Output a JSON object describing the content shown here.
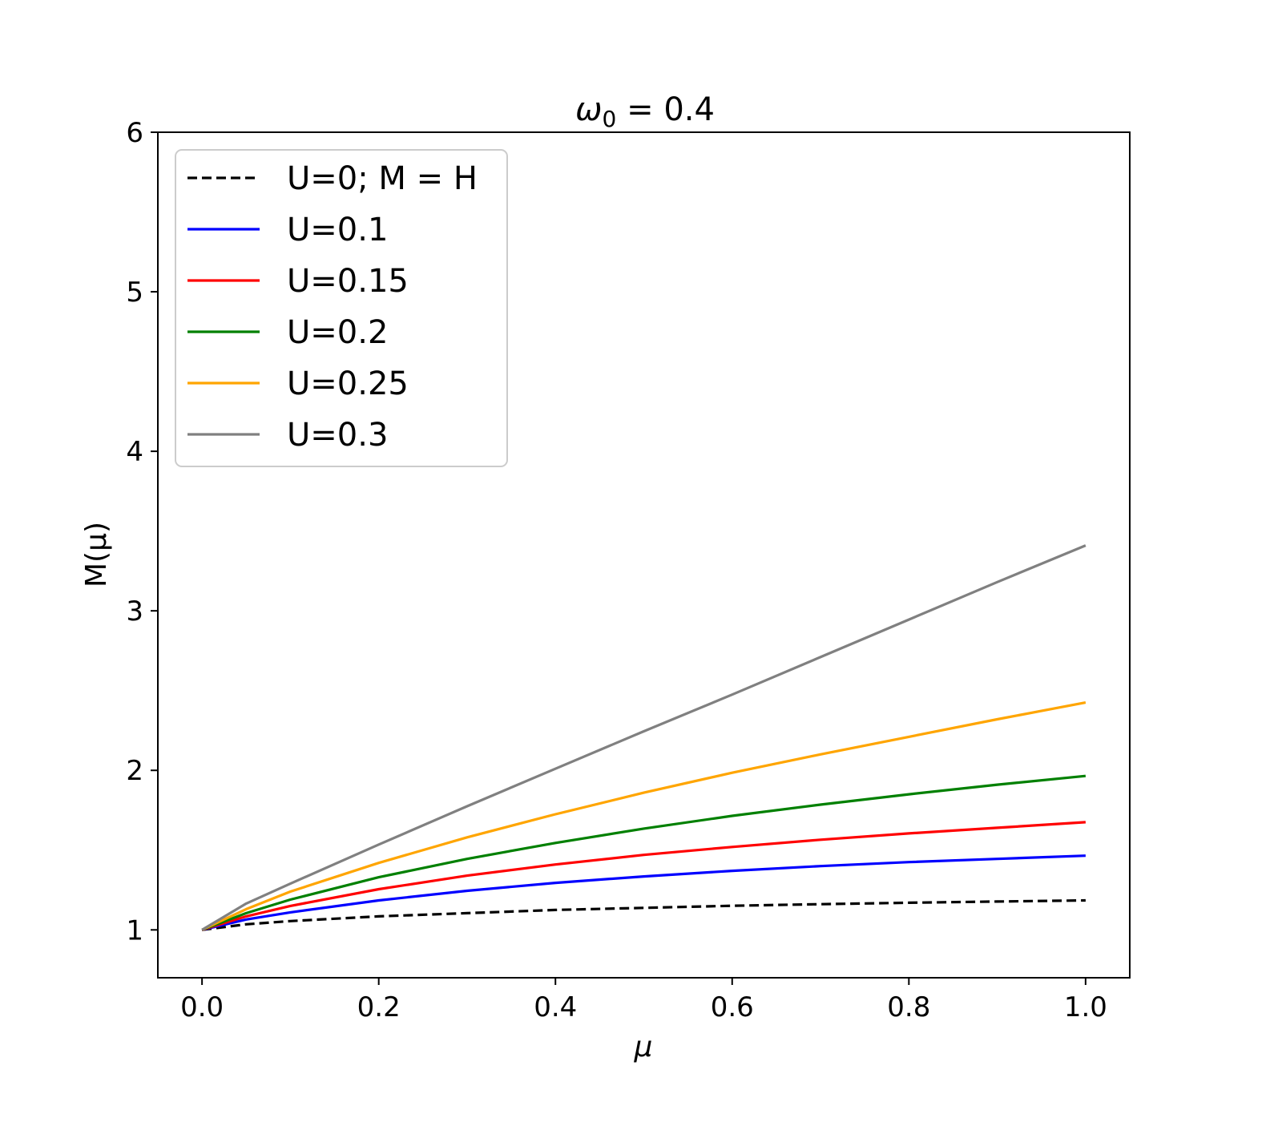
{
  "chart_data": {
    "type": "line",
    "title": {
      "symbol": "ω",
      "subscript": "0",
      "rest": " = 0.4"
    },
    "xlabel": "μ",
    "ylabel": "M(μ)",
    "xlim": [
      -0.05,
      1.05
    ],
    "ylim": [
      0.7,
      6.0
    ],
    "xticks": [
      0.0,
      0.2,
      0.4,
      0.6,
      0.8,
      1.0
    ],
    "xtick_labels": [
      "0.0",
      "0.2",
      "0.4",
      "0.6",
      "0.8",
      "1.0"
    ],
    "yticks": [
      1,
      2,
      3,
      4,
      5,
      6
    ],
    "ytick_labels": [
      "1",
      "2",
      "3",
      "4",
      "5",
      "6"
    ],
    "grid": false,
    "legend_position": "top-left",
    "x": [
      0.0,
      0.05,
      0.1,
      0.2,
      0.3,
      0.4,
      0.5,
      0.6,
      0.7,
      0.8,
      0.9,
      1.0
    ],
    "series": [
      {
        "name": "U=0; M = H",
        "color": "#000000",
        "dash": true,
        "values": [
          1.0,
          1.035,
          1.055,
          1.085,
          1.105,
          1.125,
          1.138,
          1.151,
          1.161,
          1.17,
          1.178,
          1.185
        ]
      },
      {
        "name": "U=0.1",
        "color": "#0000ff",
        "dash": false,
        "values": [
          1.0,
          1.065,
          1.11,
          1.185,
          1.245,
          1.295,
          1.335,
          1.37,
          1.4,
          1.425,
          1.445,
          1.465
        ]
      },
      {
        "name": "U=0.15",
        "color": "#ff0000",
        "dash": false,
        "values": [
          1.0,
          1.085,
          1.15,
          1.255,
          1.34,
          1.41,
          1.47,
          1.52,
          1.565,
          1.605,
          1.64,
          1.675
        ]
      },
      {
        "name": "U=0.2",
        "color": "#008000",
        "dash": false,
        "values": [
          1.0,
          1.105,
          1.19,
          1.33,
          1.445,
          1.545,
          1.635,
          1.715,
          1.785,
          1.85,
          1.91,
          1.965
        ]
      },
      {
        "name": "U=0.25",
        "color": "#ffa500",
        "dash": false,
        "values": [
          1.0,
          1.13,
          1.24,
          1.42,
          1.58,
          1.725,
          1.86,
          1.985,
          2.1,
          2.21,
          2.32,
          2.425
        ]
      },
      {
        "name": "U=0.3",
        "color": "#808080",
        "dash": false,
        "values": [
          1.0,
          1.165,
          1.29,
          1.535,
          1.775,
          2.01,
          2.245,
          2.475,
          2.71,
          2.945,
          3.18,
          3.41
        ]
      }
    ]
  }
}
